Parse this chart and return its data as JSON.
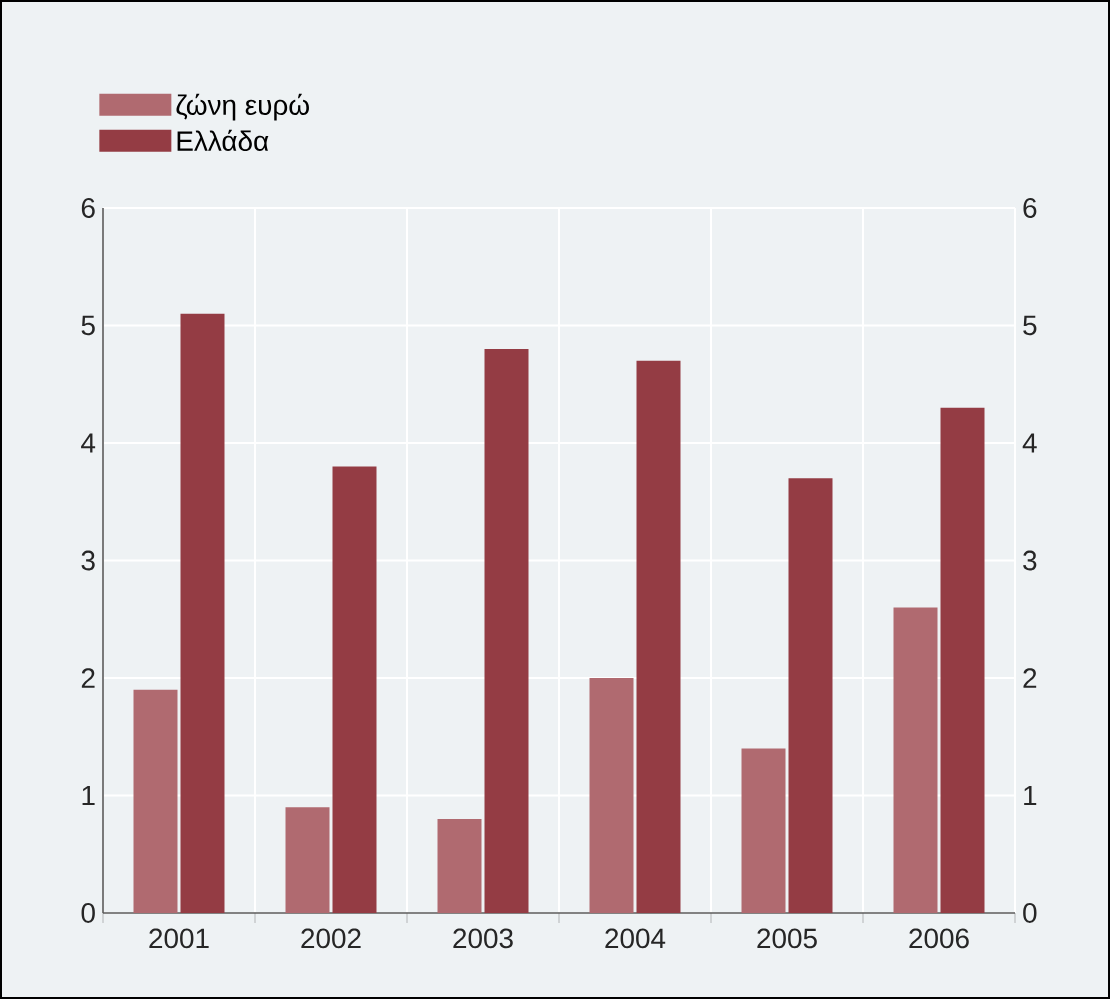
{
  "chart_data": {
    "type": "bar",
    "categories": [
      "2001",
      "2002",
      "2003",
      "2004",
      "2005",
      "2006"
    ],
    "series": [
      {
        "name": "ζώνη ευρώ",
        "color": "#b06a70",
        "values": [
          1.9,
          0.9,
          0.8,
          2.0,
          1.4,
          2.6
        ]
      },
      {
        "name": "Ελλάδα",
        "color": "#943c44",
        "values": [
          5.1,
          3.8,
          4.8,
          4.7,
          3.7,
          4.3
        ]
      }
    ],
    "ylim": [
      0,
      6
    ],
    "yticks": [
      0,
      1,
      2,
      3,
      4,
      5,
      6
    ],
    "y2lim": [
      0,
      6
    ],
    "y2ticks": [
      0,
      1,
      2,
      3,
      4,
      5,
      6
    ],
    "grid": true,
    "legend": "top left"
  }
}
